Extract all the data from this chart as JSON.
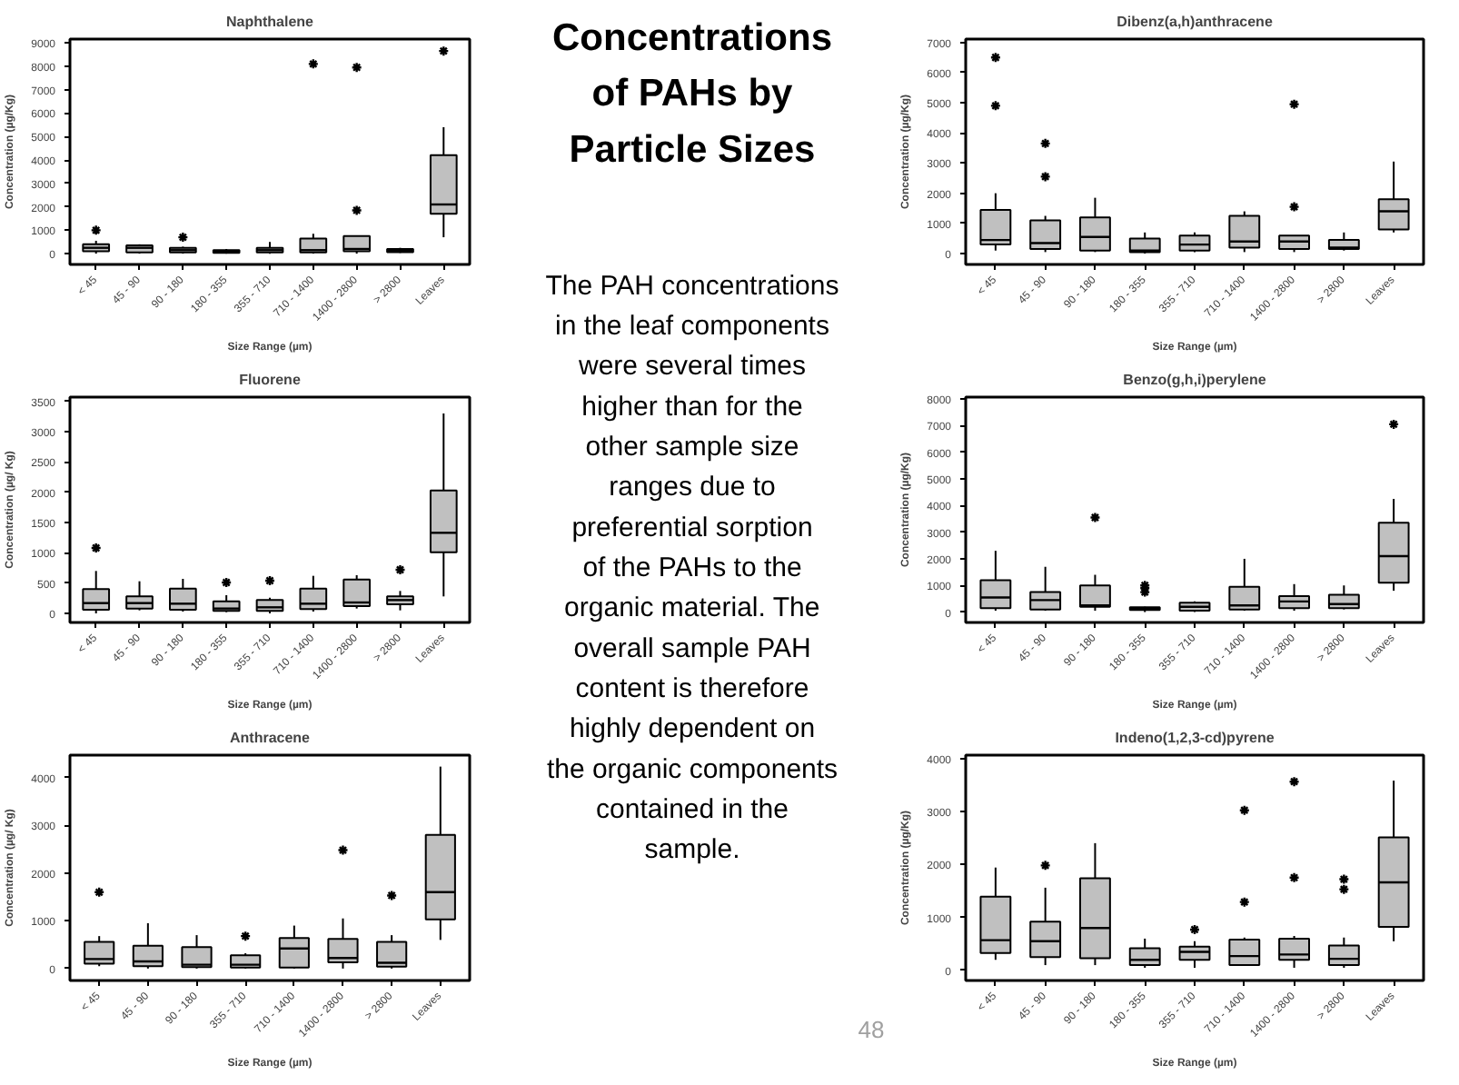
{
  "chart_data": [
    {
      "type": "box",
      "title": "Naphthalene",
      "xlabel": "Size Range (µm)",
      "ylabel": "Concentration (µg/Kg)",
      "color": "#c0c0c0",
      "categories": [
        "< 45",
        "45 - 90",
        "90 - 180",
        "180 - 355",
        "355 - 710",
        "710 - 1400",
        "1400 - 2800",
        "> 2800",
        "Leaves"
      ],
      "ylim": [
        -460,
        9160
      ],
      "yticks": [
        0,
        1000,
        2000,
        3000,
        4000,
        5000,
        6000,
        7000,
        8000,
        9000
      ],
      "boxes": [
        {
          "low": 0,
          "q1": 100,
          "median": 250,
          "q3": 400,
          "high": 550,
          "outliers": [
            1000
          ]
        },
        {
          "low": 0,
          "q1": 50,
          "median": 250,
          "q3": 350,
          "high": 400
        },
        {
          "low": 0,
          "q1": 50,
          "median": 150,
          "q3": 250,
          "high": 300,
          "outliers": [
            700
          ]
        },
        {
          "low": 0,
          "q1": 30,
          "median": 80,
          "q3": 150,
          "high": 200
        },
        {
          "low": 0,
          "q1": 50,
          "median": 150,
          "q3": 250,
          "high": 500
        },
        {
          "low": 0,
          "q1": 50,
          "median": 150,
          "q3": 650,
          "high": 850,
          "outliers": [
            8100
          ]
        },
        {
          "low": 0,
          "q1": 100,
          "median": 200,
          "q3": 750,
          "high": 750,
          "outliers": [
            1850,
            7950
          ]
        },
        {
          "low": 30,
          "q1": 60,
          "median": 120,
          "q3": 200,
          "high": 250
        },
        {
          "low": 700,
          "q1": 1700,
          "median": 2100,
          "q3": 4200,
          "high": 5400,
          "outliers": [
            8650
          ]
        }
      ]
    },
    {
      "type": "box",
      "title": "Fluorene",
      "xlabel": "Size Range (µm)",
      "ylabel": "Concentration (µg/ Kg)",
      "color": "#c0c0c0",
      "categories": [
        "< 45",
        "45 - 90",
        "90 - 180",
        "180 - 355",
        "355 - 710",
        "710 - 1400",
        "1400 - 2800",
        "> 2800",
        "Leaves"
      ],
      "ylim": [
        -150,
        3570
      ],
      "yticks": [
        0,
        500,
        1000,
        1500,
        2000,
        2500,
        3000,
        3500
      ],
      "boxes": [
        {
          "low": 0,
          "q1": 60,
          "median": 170,
          "q3": 400,
          "high": 700,
          "outliers": [
            1080
          ]
        },
        {
          "low": 50,
          "q1": 80,
          "median": 170,
          "q3": 280,
          "high": 530
        },
        {
          "low": 30,
          "q1": 60,
          "median": 160,
          "q3": 410,
          "high": 570
        },
        {
          "low": 20,
          "q1": 40,
          "median": 80,
          "q3": 200,
          "high": 300,
          "outliers": [
            510
          ]
        },
        {
          "low": 0,
          "q1": 40,
          "median": 100,
          "q3": 220,
          "high": 260,
          "outliers": [
            540
          ]
        },
        {
          "low": 30,
          "q1": 70,
          "median": 160,
          "q3": 410,
          "high": 620
        },
        {
          "low": 80,
          "q1": 120,
          "median": 180,
          "q3": 560,
          "high": 630
        },
        {
          "low": 50,
          "q1": 150,
          "median": 220,
          "q3": 280,
          "high": 370,
          "outliers": [
            720
          ]
        },
        {
          "low": 280,
          "q1": 1010,
          "median": 1330,
          "q3": 2030,
          "high": 3300
        }
      ]
    },
    {
      "type": "box",
      "title": "Anthracene",
      "xlabel": "Size Range (µm)",
      "ylabel": "Concentration (µg/ Kg)",
      "color": "#c0c0c0",
      "categories": [
        "< 45",
        "45 - 90",
        "90 - 180",
        "355 - 710",
        "710 - 1400",
        "1400 - 2800",
        "> 2800",
        "Leaves"
      ],
      "ylim": [
        -250,
        4470
      ],
      "yticks": [
        0,
        1000,
        2000,
        3000,
        4000
      ],
      "boxes": [
        {
          "low": 50,
          "q1": 100,
          "median": 200,
          "q3": 560,
          "high": 680,
          "outliers": [
            1600
          ]
        },
        {
          "low": 0,
          "q1": 50,
          "median": 150,
          "q3": 480,
          "high": 950
        },
        {
          "low": 0,
          "q1": 30,
          "median": 80,
          "q3": 450,
          "high": 700
        },
        {
          "low": 0,
          "q1": 20,
          "median": 80,
          "q3": 280,
          "high": 320,
          "outliers": [
            680
          ]
        },
        {
          "low": 0,
          "q1": 20,
          "median": 420,
          "q3": 640,
          "high": 900
        },
        {
          "low": 0,
          "q1": 130,
          "median": 220,
          "q3": 620,
          "high": 1050,
          "outliers": [
            2480
          ]
        },
        {
          "low": 0,
          "q1": 40,
          "median": 120,
          "q3": 560,
          "high": 700,
          "outliers": [
            1530
          ]
        },
        {
          "low": 600,
          "q1": 1030,
          "median": 1600,
          "q3": 2800,
          "high": 4230
        }
      ]
    },
    {
      "type": "other",
      "title": "Concentrations of PAHs by Particle Sizes",
      "annotations": [
        "The PAH concentrations in the leaf components were several times higher than for the other sample size ranges due to preferential sorption of the PAHs to the organic material. The overall sample PAH content is therefore highly dependent on the organic components contained in the sample.",
        "48"
      ]
    },
    {
      "type": "box",
      "title": "Dibenz(a,h)anthracene",
      "xlabel": "Size Range (µm)",
      "ylabel": "Concentration (µg/Kg)",
      "color": "#c0c0c0",
      "categories": [
        "< 45",
        "45 - 90",
        "90 - 180",
        "180 - 355",
        "355 - 710",
        "710 - 1400",
        "1400 - 2800",
        "> 2800",
        "Leaves"
      ],
      "ylim": [
        -360,
        7110
      ],
      "yticks": [
        0,
        1000,
        2000,
        3000,
        4000,
        5000,
        6000,
        7000
      ],
      "boxes": [
        {
          "low": 100,
          "q1": 300,
          "median": 450,
          "q3": 1450,
          "high": 2000,
          "outliers": [
            4900,
            6500
          ]
        },
        {
          "low": 50,
          "q1": 150,
          "median": 350,
          "q3": 1100,
          "high": 1250,
          "outliers": [
            2550,
            3650
          ]
        },
        {
          "low": 50,
          "q1": 100,
          "median": 550,
          "q3": 1200,
          "high": 1850
        },
        {
          "low": 0,
          "q1": 50,
          "median": 100,
          "q3": 500,
          "high": 700
        },
        {
          "low": 50,
          "q1": 100,
          "median": 300,
          "q3": 600,
          "high": 700
        },
        {
          "low": 50,
          "q1": 200,
          "median": 400,
          "q3": 1250,
          "high": 1400
        },
        {
          "low": 50,
          "q1": 150,
          "median": 400,
          "q3": 600,
          "high": 600,
          "outliers": [
            1550,
            4950
          ]
        },
        {
          "low": 100,
          "q1": 150,
          "median": 200,
          "q3": 450,
          "high": 700
        },
        {
          "low": 700,
          "q1": 800,
          "median": 1400,
          "q3": 1800,
          "high": 3050
        }
      ]
    },
    {
      "type": "box",
      "title": "Benzo(g,h,i)perylene",
      "xlabel": "Size Range (µm)",
      "ylabel": "Concentration (µg/Kg)",
      "color": "#c0c0c0",
      "categories": [
        "< 45",
        "45 - 90",
        "90 - 180",
        "180 - 355",
        "355 - 710",
        "710 - 1400",
        "1400 - 2800",
        "> 2800",
        "Leaves"
      ],
      "ylim": [
        -390,
        8070
      ],
      "yticks": [
        0,
        1000,
        2000,
        3000,
        4000,
        5000,
        6000,
        7000,
        8000
      ],
      "boxes": [
        {
          "low": 50,
          "q1": 150,
          "median": 550,
          "q3": 1200,
          "high": 2300
        },
        {
          "low": 50,
          "q1": 100,
          "median": 450,
          "q3": 750,
          "high": 1700
        },
        {
          "low": 50,
          "q1": 200,
          "median": 250,
          "q3": 1000,
          "high": 1400,
          "outliers": [
            3550
          ]
        },
        {
          "low": 0,
          "q1": 80,
          "median": 120,
          "q3": 180,
          "high": 200,
          "outliers": [
            750,
            900,
            1000
          ]
        },
        {
          "low": 0,
          "q1": 50,
          "median": 200,
          "q3": 350,
          "high": 400
        },
        {
          "low": 50,
          "q1": 100,
          "median": 250,
          "q3": 950,
          "high": 2000
        },
        {
          "low": 50,
          "q1": 150,
          "median": 400,
          "q3": 600,
          "high": 1050
        },
        {
          "low": 100,
          "q1": 150,
          "median": 300,
          "q3": 650,
          "high": 1000
        },
        {
          "low": 800,
          "q1": 1100,
          "median": 2100,
          "q3": 3350,
          "high": 4250,
          "outliers": [
            7050
          ]
        }
      ]
    },
    {
      "type": "box",
      "title": "Indeno(1,2,3-cd)pyrene",
      "xlabel": "Size Range (µm)",
      "ylabel": "Concentration (µg/Kg)",
      "color": "#c0c0c0",
      "categories": [
        "< 45",
        "45 - 90",
        "90 - 180",
        "180 - 355",
        "355 - 710",
        "710 - 1400",
        "1400 - 2800",
        "> 2800",
        "Leaves"
      ],
      "ylim": [
        -190,
        4060
      ],
      "yticks": [
        0,
        1000,
        2000,
        3000,
        4000
      ],
      "boxes": [
        {
          "low": 200,
          "q1": 330,
          "median": 570,
          "q3": 1390,
          "high": 1940
        },
        {
          "low": 100,
          "q1": 250,
          "median": 550,
          "q3": 920,
          "high": 1560,
          "outliers": [
            1980
          ]
        },
        {
          "low": 100,
          "q1": 230,
          "median": 800,
          "q3": 1740,
          "high": 2400
        },
        {
          "low": 50,
          "q1": 100,
          "median": 200,
          "q3": 420,
          "high": 600
        },
        {
          "low": 50,
          "q1": 200,
          "median": 350,
          "q3": 450,
          "high": 550,
          "outliers": [
            770
          ]
        },
        {
          "low": 100,
          "q1": 100,
          "median": 270,
          "q3": 580,
          "high": 620,
          "outliers": [
            1290,
            3020
          ]
        },
        {
          "low": 50,
          "q1": 200,
          "median": 300,
          "q3": 600,
          "high": 650,
          "outliers": [
            1750,
            3560
          ]
        },
        {
          "low": 50,
          "q1": 100,
          "median": 220,
          "q3": 470,
          "high": 620,
          "outliers": [
            1530,
            1720
          ]
        },
        {
          "low": 550,
          "q1": 820,
          "median": 1660,
          "q3": 2510,
          "high": 3580
        }
      ]
    }
  ]
}
